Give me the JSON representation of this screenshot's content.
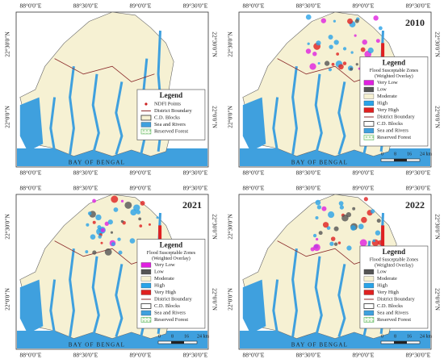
{
  "panels": [
    {
      "top_labels": [
        "88°0'0\"E",
        "88°30'0\"E",
        "89°0'0\"E",
        "89°30'0\"E"
      ],
      "bottom_labels": [
        "88°0'0\"E",
        "88°30'0\"E",
        "89°0'0\"E",
        "89°30'0\"E"
      ],
      "left_labels": [
        "22°30'0\"N",
        "22°0'0\"N"
      ],
      "right_labels": [
        "22°30'0\"N",
        "22°0'0\"N"
      ],
      "sea_label": "BAY OF BENGAL",
      "legend": {
        "title": "Legend",
        "items": [
          {
            "label": "NDFI Points",
            "symbol": "point",
            "color": "#cc2020"
          },
          {
            "label": "District Boundary",
            "symbol": "line",
            "color": "#8b2a2a"
          },
          {
            "label": "C.D. Blocks",
            "symbol": "box",
            "color": "#f6f1d3"
          },
          {
            "label": "Sea and Rivers",
            "symbol": "fill",
            "color": "#3fa0de"
          },
          {
            "label": "Reserved Forest",
            "symbol": "hatch",
            "color": "#5ab55a"
          }
        ]
      }
    },
    {
      "year": "2010",
      "top_labels": [
        "88°0'0\"E",
        "88°30'0\"E",
        "89°0'0\"E",
        "89°30'0\"E"
      ],
      "bottom_labels": [
        "88°0'0\"E",
        "88°30'0\"E",
        "89°0'0\"E",
        "89°30'0\"E"
      ],
      "left_labels": [
        "22°30'0\"N",
        "22°0'0\"N"
      ],
      "right_labels": [
        "22°30'0\"N",
        "22°0'0\"N"
      ],
      "sea_label": "BAY OF BENGAL",
      "scale": [
        "0",
        "8",
        "16",
        "24 km"
      ],
      "legend": {
        "title": "Legend",
        "subtitle": [
          "Flood Susceptable Zones",
          "(Weighted Overlay)"
        ],
        "items": [
          {
            "label": "Very Low",
            "symbol": "fill",
            "color": "#e020e0"
          },
          {
            "label": "Low",
            "symbol": "fill",
            "color": "#555555"
          },
          {
            "label": "Moderate",
            "symbol": "fill",
            "color": "#f6f1d3"
          },
          {
            "label": "High",
            "symbol": "fill",
            "color": "#29a3e8"
          },
          {
            "label": "Very High",
            "symbol": "fill",
            "color": "#e02020"
          },
          {
            "label": "District Boundary",
            "symbol": "line",
            "color": "#8b2a2a"
          },
          {
            "label": "C.D. Blocks",
            "symbol": "box",
            "color": "#ffffff"
          },
          {
            "label": "Sea and Rivers",
            "symbol": "fill",
            "color": "#3fa0de"
          },
          {
            "label": "Reserved Forest",
            "symbol": "hatch",
            "color": "#5ab55a"
          }
        ]
      }
    },
    {
      "year": "2021",
      "top_labels": [
        "88°0'0\"E",
        "88°30'0\"E",
        "89°0'0\"E",
        "89°30'0\"E"
      ],
      "bottom_labels": [
        "88°0'0\"E",
        "88°30'0\"E",
        "89°0'0\"E",
        "89°30'0\"E"
      ],
      "left_labels": [
        "22°30'0\"N",
        "22°0'0\"N"
      ],
      "right_labels": [
        "22°30'0\"N",
        "22°0'0\"N"
      ],
      "sea_label": "BAY OF BENGAL",
      "scale": [
        "0",
        "8",
        "16",
        "24 km"
      ],
      "legend": {
        "title": "Legend",
        "subtitle": [
          "Flood Susceptable Zones",
          "(Weighted Overlay)"
        ],
        "items": [
          {
            "label": "Very Low",
            "symbol": "fill",
            "color": "#e020e0"
          },
          {
            "label": "Low",
            "symbol": "fill",
            "color": "#555555"
          },
          {
            "label": "Moderate",
            "symbol": "fill",
            "color": "#f6f1d3"
          },
          {
            "label": "High",
            "symbol": "fill",
            "color": "#29a3e8"
          },
          {
            "label": "Very High",
            "symbol": "fill",
            "color": "#e02020"
          },
          {
            "label": "District Boundary",
            "symbol": "line",
            "color": "#8b2a2a"
          },
          {
            "label": "C.D. Blocks",
            "symbol": "box",
            "color": "#ffffff"
          },
          {
            "label": "Sea and Rivers",
            "symbol": "fill",
            "color": "#3fa0de"
          },
          {
            "label": "Reserved Forest",
            "symbol": "hatch",
            "color": "#5ab55a"
          }
        ]
      }
    },
    {
      "year": "2022",
      "top_labels": [
        "88°0'0\"E",
        "88°30'0\"E",
        "89°0'0\"E",
        "89°30'0\"E"
      ],
      "bottom_labels": [
        "88°0'0\"E",
        "88°30'0\"E",
        "89°0'0\"E",
        "89°30'0\"E"
      ],
      "left_labels": [
        "22°30'0\"N",
        "22°0'0\"N"
      ],
      "right_labels": [
        "22°30'0\"N",
        "22°0'0\"N"
      ],
      "sea_label": "BAY OF BENGAL",
      "scale": [
        "0",
        "8",
        "16",
        "24 km"
      ],
      "legend": {
        "title": "Legend",
        "subtitle": [
          "Flood Susceptable Zones",
          "(Weighted Overlay)"
        ],
        "items": [
          {
            "label": "Low",
            "symbol": "fill",
            "color": "#555555"
          },
          {
            "label": "Moderate",
            "symbol": "fill",
            "color": "#f6f1d3"
          },
          {
            "label": "High",
            "symbol": "fill",
            "color": "#29a3e8"
          },
          {
            "label": "Very High",
            "symbol": "fill",
            "color": "#e02020"
          },
          {
            "label": "District Boundary",
            "symbol": "line",
            "color": "#8b2a2a"
          },
          {
            "label": "C.D. Blocks",
            "symbol": "box",
            "color": "#ffffff"
          },
          {
            "label": "Sea and Rivers",
            "symbol": "fill",
            "color": "#3fa0de"
          },
          {
            "label": "Reserved Forest",
            "symbol": "hatch",
            "color": "#5ab55a"
          }
        ]
      }
    }
  ]
}
